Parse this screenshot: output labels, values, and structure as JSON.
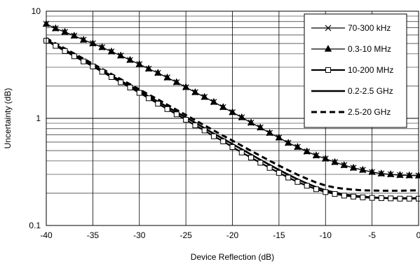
{
  "chart_data": {
    "type": "line",
    "xlabel": "Device Reflection (dB)",
    "ylabel": "Uncertainty (dB)",
    "xlim": [
      -40,
      0
    ],
    "ylim": [
      0.1,
      10
    ],
    "yscale": "log",
    "x_ticks": [
      -40,
      -35,
      -30,
      -25,
      -20,
      -15,
      -10,
      -5,
      0
    ],
    "x_tick_labels": [
      "-40",
      "-35",
      "-30",
      "-25",
      "-20",
      "-15",
      "-10",
      "-5",
      "0"
    ],
    "y_ticks": [
      0.1,
      1,
      10
    ],
    "y_tick_labels": [
      "0.1",
      "1",
      "10"
    ],
    "grid": true,
    "legend_position": "top-right",
    "x": [
      -40,
      -39,
      -38,
      -37,
      -36,
      -35,
      -34,
      -33,
      -32,
      -31,
      -30,
      -29,
      -28,
      -27,
      -26,
      -25,
      -24,
      -23,
      -22,
      -21,
      -20,
      -19,
      -18,
      -17,
      -16,
      -15,
      -14,
      -13,
      -12,
      -11,
      -10,
      -9,
      -8,
      -7,
      -6,
      -5,
      -4,
      -3,
      -2,
      -1,
      0
    ],
    "series": [
      {
        "name": "70-300 kHz",
        "marker": "x",
        "line_style": "solid",
        "values": [
          7.6,
          6.9,
          6.4,
          5.9,
          5.4,
          5.0,
          4.6,
          4.2,
          3.85,
          3.5,
          3.2,
          2.9,
          2.65,
          2.4,
          2.17,
          1.95,
          1.75,
          1.58,
          1.42,
          1.27,
          1.14,
          1.02,
          0.91,
          0.82,
          0.73,
          0.66,
          0.59,
          0.54,
          0.49,
          0.45,
          0.42,
          0.39,
          0.365,
          0.345,
          0.33,
          0.315,
          0.305,
          0.3,
          0.295,
          0.293,
          0.292
        ]
      },
      {
        "name": "0.3-10 MHz",
        "marker": "triangle",
        "line_style": "solid",
        "values": [
          7.6,
          6.9,
          6.4,
          5.9,
          5.4,
          5.0,
          4.6,
          4.2,
          3.85,
          3.5,
          3.2,
          2.9,
          2.65,
          2.4,
          2.17,
          1.95,
          1.75,
          1.58,
          1.42,
          1.27,
          1.14,
          1.02,
          0.91,
          0.82,
          0.73,
          0.66,
          0.59,
          0.54,
          0.49,
          0.45,
          0.42,
          0.39,
          0.365,
          0.345,
          0.33,
          0.315,
          0.305,
          0.3,
          0.295,
          0.293,
          0.292
        ]
      },
      {
        "name": "10-200 MHz",
        "marker": "square",
        "line_style": "solid",
        "values": [
          5.3,
          4.75,
          4.25,
          3.8,
          3.4,
          3.05,
          2.72,
          2.43,
          2.17,
          1.94,
          1.73,
          1.54,
          1.37,
          1.22,
          1.09,
          0.97,
          0.86,
          0.77,
          0.68,
          0.61,
          0.54,
          0.48,
          0.43,
          0.385,
          0.345,
          0.31,
          0.28,
          0.255,
          0.235,
          0.218,
          0.205,
          0.197,
          0.19,
          0.186,
          0.183,
          0.181,
          0.18,
          0.179,
          0.178,
          0.178,
          0.178
        ]
      },
      {
        "name": "0.2-2.5 GHz",
        "marker": "none",
        "line_style": "solid",
        "values": [
          5.4,
          4.85,
          4.35,
          3.9,
          3.5,
          3.13,
          2.8,
          2.5,
          2.24,
          2.0,
          1.79,
          1.6,
          1.43,
          1.28,
          1.14,
          1.02,
          0.91,
          0.81,
          0.72,
          0.645,
          0.575,
          0.515,
          0.46,
          0.41,
          0.368,
          0.33,
          0.298,
          0.27,
          0.247,
          0.228,
          0.213,
          0.203,
          0.195,
          0.19,
          0.186,
          0.183,
          0.181,
          0.18,
          0.18,
          0.18,
          0.18
        ]
      },
      {
        "name": "2.5-20 GHz",
        "marker": "none",
        "line_style": "dashed",
        "values": [
          5.6,
          5.0,
          4.48,
          4.02,
          3.6,
          3.23,
          2.89,
          2.59,
          2.32,
          2.08,
          1.86,
          1.67,
          1.5,
          1.34,
          1.2,
          1.075,
          0.96,
          0.86,
          0.77,
          0.69,
          0.62,
          0.555,
          0.497,
          0.447,
          0.402,
          0.362,
          0.328,
          0.298,
          0.273,
          0.252,
          0.236,
          0.226,
          0.22,
          0.216,
          0.213,
          0.212,
          0.211,
          0.211,
          0.211,
          0.212,
          0.213
        ]
      }
    ]
  }
}
